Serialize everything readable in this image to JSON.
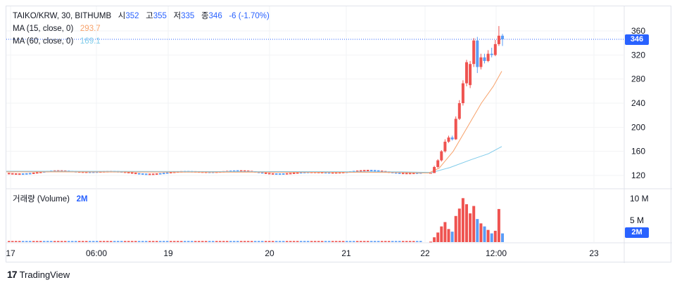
{
  "header": {
    "symbol_line": "TAIKO/KRW, 30, BITHUMB",
    "open_label": "시",
    "open_value": "352",
    "high_label": "고",
    "high_value": "355",
    "low_label": "저",
    "low_value": "335",
    "close_label": "종",
    "close_value": "346",
    "change": "-6 (-1.70%)"
  },
  "indicators": {
    "ma15_label": "MA (15, close, 0)",
    "ma15_value": "293.7",
    "ma60_label": "MA (60, close, 0)",
    "ma60_value": "169.1",
    "volume_label": "거래량 (Volume)",
    "volume_value": "2M"
  },
  "price_badge": "346",
  "volume_badge": "2M",
  "footer": {
    "brand": "TradingView",
    "logo_glyph": "17"
  },
  "colors": {
    "up": "#ef5350",
    "down": "#5b9cf6",
    "ma15": "#f7a26b",
    "ma60": "#7fcbea",
    "badge": "#2962ff"
  },
  "chart_data": {
    "type": "candlestick",
    "price_axis": {
      "ticks": [
        120,
        160,
        200,
        240,
        280,
        320,
        360
      ],
      "range": [
        100,
        376
      ]
    },
    "volume_axis": {
      "ticks": [
        "5 M",
        "10 M"
      ],
      "range_millions": [
        0,
        11.5
      ]
    },
    "time_axis": {
      "ticks": [
        "17",
        "06:00",
        "19",
        "20",
        "21",
        "22",
        "12:00",
        "23"
      ]
    },
    "last_price": 346,
    "flat_phase": {
      "from": "17",
      "to": "22",
      "approx_price": 125
    },
    "candles": [
      {
        "t": 0,
        "o": 124,
        "h": 124,
        "l": 124,
        "c": 124,
        "v": 0.1
      },
      {
        "t": 1,
        "o": 124,
        "h": 136,
        "l": 124,
        "c": 134,
        "v": 1.1
      },
      {
        "t": 2,
        "o": 134,
        "h": 147,
        "l": 132,
        "c": 145,
        "v": 2.2
      },
      {
        "t": 3,
        "o": 145,
        "h": 162,
        "l": 143,
        "c": 160,
        "v": 3.6
      },
      {
        "t": 4,
        "o": 160,
        "h": 180,
        "l": 158,
        "c": 176,
        "v": 4.6
      },
      {
        "t": 5,
        "o": 176,
        "h": 186,
        "l": 174,
        "c": 183,
        "v": 3.0
      },
      {
        "t": 6,
        "o": 183,
        "h": 186,
        "l": 178,
        "c": 180,
        "v": 2.4
      },
      {
        "t": 7,
        "o": 180,
        "h": 218,
        "l": 179,
        "c": 214,
        "v": 6.0
      },
      {
        "t": 8,
        "o": 214,
        "h": 245,
        "l": 212,
        "c": 240,
        "v": 7.7
      },
      {
        "t": 9,
        "o": 240,
        "h": 278,
        "l": 236,
        "c": 273,
        "v": 10.1
      },
      {
        "t": 10,
        "o": 273,
        "h": 312,
        "l": 268,
        "c": 308,
        "v": 8.7
      },
      {
        "t": 11,
        "o": 270,
        "h": 310,
        "l": 265,
        "c": 305,
        "v": 6.6
      },
      {
        "t": 12,
        "o": 305,
        "h": 348,
        "l": 300,
        "c": 344,
        "v": 8.3
      },
      {
        "t": 13,
        "o": 344,
        "h": 350,
        "l": 290,
        "c": 300,
        "v": 5.3
      },
      {
        "t": 14,
        "o": 300,
        "h": 322,
        "l": 296,
        "c": 316,
        "v": 4.3
      },
      {
        "t": 15,
        "o": 316,
        "h": 322,
        "l": 306,
        "c": 310,
        "v": 3.6
      },
      {
        "t": 16,
        "o": 310,
        "h": 328,
        "l": 308,
        "c": 322,
        "v": 2.8
      },
      {
        "t": 17,
        "o": 322,
        "h": 332,
        "l": 316,
        "c": 320,
        "v": 2.0
      },
      {
        "t": 18,
        "o": 320,
        "h": 345,
        "l": 318,
        "c": 338,
        "v": 2.6
      },
      {
        "t": 19,
        "o": 338,
        "h": 368,
        "l": 335,
        "c": 352,
        "v": 7.6
      },
      {
        "t": 20,
        "o": 352,
        "h": 355,
        "l": 335,
        "c": 346,
        "v": 2.0
      }
    ]
  }
}
